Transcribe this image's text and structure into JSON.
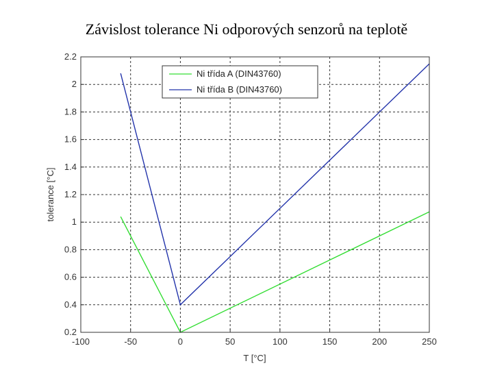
{
  "chart_data": {
    "type": "line",
    "title": "Závislost tolerance Ni odporových senzorů na teplotě",
    "xlabel": "T [°C]",
    "ylabel": "tolerance [°C]",
    "xlim": [
      -100,
      250
    ],
    "ylim": [
      0.2,
      2.2
    ],
    "x_ticks": [
      -100,
      -50,
      0,
      50,
      100,
      150,
      200,
      250
    ],
    "x_tick_labels": [
      "-100",
      "-50",
      "0",
      "50",
      "100",
      "150",
      "200",
      "250"
    ],
    "y_ticks": [
      0.2,
      0.4,
      0.6,
      0.8,
      1.0,
      1.2,
      1.4,
      1.6,
      1.8,
      2.0,
      2.2
    ],
    "y_tick_labels": [
      "0.2",
      "0.4",
      "0.6",
      "0.8",
      "1",
      "1.2",
      "1.4",
      "1.6",
      "1.8",
      "2",
      "2.2"
    ],
    "grid": true,
    "legend_position": "top-center",
    "series": [
      {
        "name": "Ni třída A (DIN43760)",
        "color": "#33dd33",
        "x": [
          -60,
          0,
          250
        ],
        "y": [
          1.04,
          0.2,
          1.075
        ]
      },
      {
        "name": "Ni třída B (DIN43760)",
        "color": "#2233aa",
        "x": [
          -60,
          0,
          250
        ],
        "y": [
          2.08,
          0.4,
          2.15
        ]
      }
    ]
  }
}
